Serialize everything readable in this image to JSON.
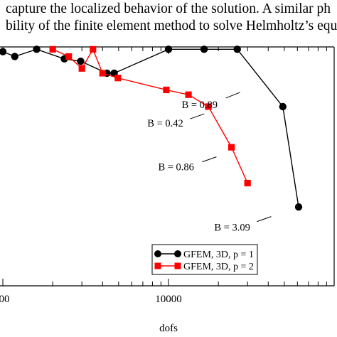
{
  "paper_text": {
    "line1": "capture the localized behavior of the solution. A similar ph",
    "line2": "bility of the finite element method to solve Helmholtz’s equ"
  },
  "chart_data": {
    "type": "line",
    "xlabel": "dofs",
    "xscale": "log",
    "xlim": [
      1000,
      100000
    ],
    "ylim": [
      0,
      1
    ],
    "xtick_labels": [
      "00",
      "10000"
    ],
    "series": [
      {
        "name": "GFEM, 3D, p = 1",
        "color": "#000000",
        "marker": "circle",
        "x": [
          1000,
          1180,
          1600,
          2350,
          2950,
          4250,
          4700,
          10000,
          16400,
          26000,
          49000,
          61000
        ],
        "y": [
          0.98,
          0.96,
          0.99,
          0.95,
          0.94,
          0.89,
          0.89,
          0.99,
          0.99,
          0.99,
          0.75,
          0.33
        ]
      },
      {
        "name": "GFEM, 3D, p = 2",
        "color": "#ff0000",
        "marker": "square",
        "x": [
          2000,
          2500,
          3000,
          3500,
          4000,
          4950,
          9700,
          13200,
          17400,
          24000,
          30000
        ],
        "y": [
          0.99,
          0.96,
          0.91,
          0.99,
          0.89,
          0.87,
          0.82,
          0.8,
          0.75,
          0.58,
          0.43
        ]
      }
    ],
    "annotations": [
      {
        "text": "B = 0.89",
        "x": 24000,
        "y": 0.78
      },
      {
        "text": "B = 0.42",
        "x": 14600,
        "y": 0.69
      },
      {
        "text": "B = 0.86",
        "x": 17300,
        "y": 0.51
      },
      {
        "text": "B = 3.09",
        "x": 37000,
        "y": 0.26
      }
    ],
    "legend_position": "bottom-right"
  }
}
